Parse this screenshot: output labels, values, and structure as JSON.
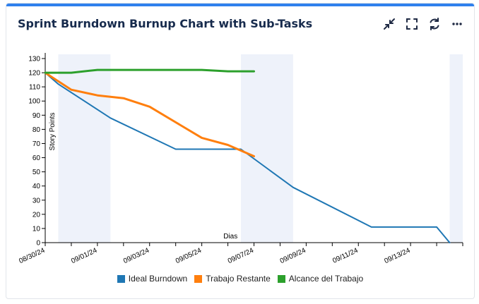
{
  "header": {
    "title": "Sprint Burndown Burnup Chart with Sub-Tasks",
    "actions": [
      {
        "name": "minimize",
        "icon": "minimize-arrows-icon"
      },
      {
        "name": "fullscreen",
        "icon": "fullscreen-icon"
      },
      {
        "name": "refresh",
        "icon": "refresh-icon"
      },
      {
        "name": "more",
        "icon": "more-horizontal-icon"
      }
    ]
  },
  "colors": {
    "accent_bar": "#2f80ed",
    "weekend_band": "#eef2fa",
    "ideal": "#1f77b4",
    "remaining": "#ff7f0e",
    "scope": "#2ca02c"
  },
  "chart_data": {
    "type": "line",
    "title": "Sprint Burndown Burnup Chart with Sub-Tasks",
    "xlabel": "Dias",
    "ylabel": "Story Points",
    "x_range_days": [
      0,
      16
    ],
    "x_tick_days": [
      0,
      2,
      4,
      6,
      8,
      10,
      12,
      14
    ],
    "x_tick_labels": [
      "08/30/24",
      "09/01/24",
      "09/03/24",
      "09/05/24",
      "09/07/24",
      "09/09/24",
      "09/11/24",
      "09/13/24"
    ],
    "y_range": [
      0,
      133
    ],
    "y_ticks": [
      0,
      10,
      20,
      30,
      40,
      50,
      60,
      70,
      80,
      90,
      100,
      110,
      120,
      130
    ],
    "weekend_bands_days": [
      [
        0.5,
        2.5
      ],
      [
        7.5,
        9.5
      ],
      [
        15.5,
        16.5
      ]
    ],
    "series": [
      {
        "name": "Ideal Burndown",
        "x_days": [
          0,
          0.5,
          2.5,
          5,
          7.5,
          9.5,
          12.5,
          15,
          15.5
        ],
        "values": [
          120,
          112,
          88,
          66,
          66,
          39,
          11,
          11,
          0
        ]
      },
      {
        "name": "Trabajo Restante",
        "x_days": [
          0,
          1,
          2,
          3,
          4,
          5,
          6,
          7,
          8
        ],
        "values": [
          120,
          108,
          104,
          102,
          96,
          85,
          74,
          69,
          61
        ]
      },
      {
        "name": "Alcance del Trabajo",
        "x_days": [
          0,
          1,
          2,
          3,
          4,
          5,
          6,
          7,
          8
        ],
        "values": [
          120,
          120,
          122,
          122,
          122,
          122,
          122,
          121,
          121
        ]
      }
    ]
  }
}
